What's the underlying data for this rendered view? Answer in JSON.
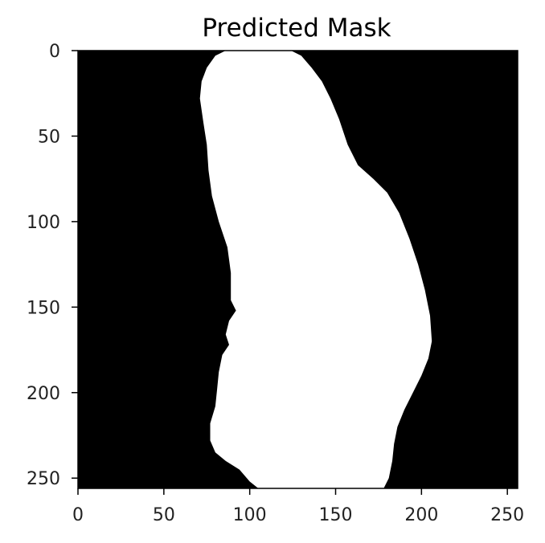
{
  "chart_data": {
    "type": "heatmap",
    "title": "Predicted Mask",
    "xlabel": "",
    "ylabel": "",
    "xlim": [
      0,
      256
    ],
    "ylim": [
      256,
      0
    ],
    "x_ticks": [
      0,
      50,
      100,
      150,
      200,
      250
    ],
    "y_ticks": [
      0,
      50,
      100,
      150,
      200,
      250
    ],
    "grid": false,
    "colormap": {
      "background": "#000000",
      "mask": "#ffffff"
    },
    "mask_value_range": [
      0,
      1
    ],
    "mask_outline": [
      [
        124,
        0
      ],
      [
        130,
        3
      ],
      [
        136,
        10
      ],
      [
        142,
        18
      ],
      [
        147,
        28
      ],
      [
        152,
        40
      ],
      [
        157,
        55
      ],
      [
        163,
        67
      ],
      [
        172,
        75
      ],
      [
        180,
        83
      ],
      [
        187,
        95
      ],
      [
        193,
        110
      ],
      [
        198,
        125
      ],
      [
        202,
        140
      ],
      [
        205,
        155
      ],
      [
        206,
        170
      ],
      [
        204,
        180
      ],
      [
        200,
        190
      ],
      [
        195,
        200
      ],
      [
        190,
        210
      ],
      [
        186,
        220
      ],
      [
        184,
        230
      ],
      [
        183,
        240
      ],
      [
        181,
        250
      ],
      [
        178,
        256
      ],
      [
        105,
        256
      ],
      [
        100,
        252
      ],
      [
        94,
        245
      ],
      [
        86,
        240
      ],
      [
        80,
        235
      ],
      [
        77,
        228
      ],
      [
        77,
        218
      ],
      [
        80,
        208
      ],
      [
        81,
        198
      ],
      [
        82,
        188
      ],
      [
        84,
        178
      ],
      [
        88,
        172
      ],
      [
        86,
        166
      ],
      [
        88,
        158
      ],
      [
        92,
        152
      ],
      [
        89,
        146
      ],
      [
        89,
        130
      ],
      [
        87,
        115
      ],
      [
        82,
        100
      ],
      [
        78,
        85
      ],
      [
        76,
        70
      ],
      [
        75,
        55
      ],
      [
        73,
        42
      ],
      [
        71,
        28
      ],
      [
        72,
        18
      ],
      [
        75,
        10
      ],
      [
        80,
        3
      ],
      [
        86,
        0
      ]
    ]
  }
}
